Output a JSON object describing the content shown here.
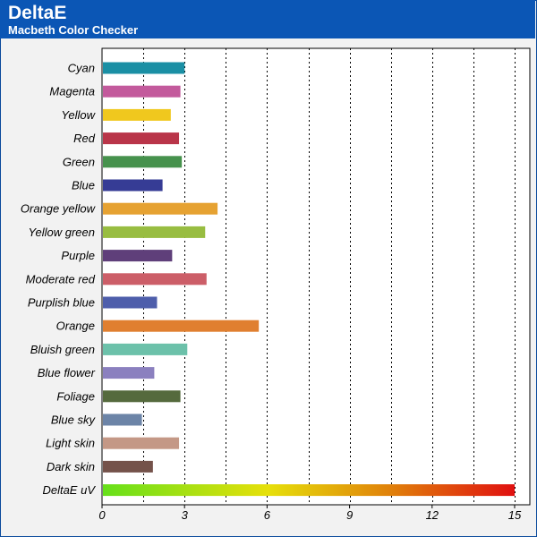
{
  "header": {
    "title": "DeltaE",
    "subtitle": "Macbeth Color Checker"
  },
  "colors": {
    "header_bg": "#0b56b5",
    "plot_bg": "#ffffff",
    "frame_bg": "#f2f2f2"
  },
  "chart_data": {
    "type": "bar",
    "orientation": "horizontal",
    "title": "DeltaE",
    "subtitle": "Macbeth Color Checker",
    "xlim": [
      0,
      15
    ],
    "ticks": [
      0,
      3,
      6,
      9,
      12,
      15
    ],
    "grid": true,
    "categories": [
      "Cyan",
      "Magenta",
      "Yellow",
      "Red",
      "Green",
      "Blue",
      "Orange yellow",
      "Yellow green",
      "Purple",
      "Moderate red",
      "Purplish blue",
      "Orange",
      "Bluish green",
      "Blue flower",
      "Foliage",
      "Blue sky",
      "Light skin",
      "Dark skin",
      "DeltaE uV"
    ],
    "values": [
      3.0,
      2.85,
      2.5,
      2.8,
      2.9,
      2.2,
      4.2,
      3.75,
      2.55,
      3.8,
      2.0,
      5.7,
      3.1,
      1.9,
      2.85,
      1.45,
      2.8,
      1.85,
      15
    ],
    "bar_colors": [
      "#1a8fa4",
      "#c35a9c",
      "#f0c81e",
      "#b93549",
      "#46924d",
      "#363c95",
      "#e6a232",
      "#98bd41",
      "#5f3f7a",
      "#cc5e68",
      "#4e5eab",
      "#e07f30",
      "#6cc1aa",
      "#8b80bf",
      "#556a3d",
      "#6c84a7",
      "#c49886",
      "#74524a",
      "gradient"
    ],
    "gradient_stops": [
      "#66e01a",
      "#e6e00a",
      "#e0800a",
      "#e01010"
    ]
  }
}
